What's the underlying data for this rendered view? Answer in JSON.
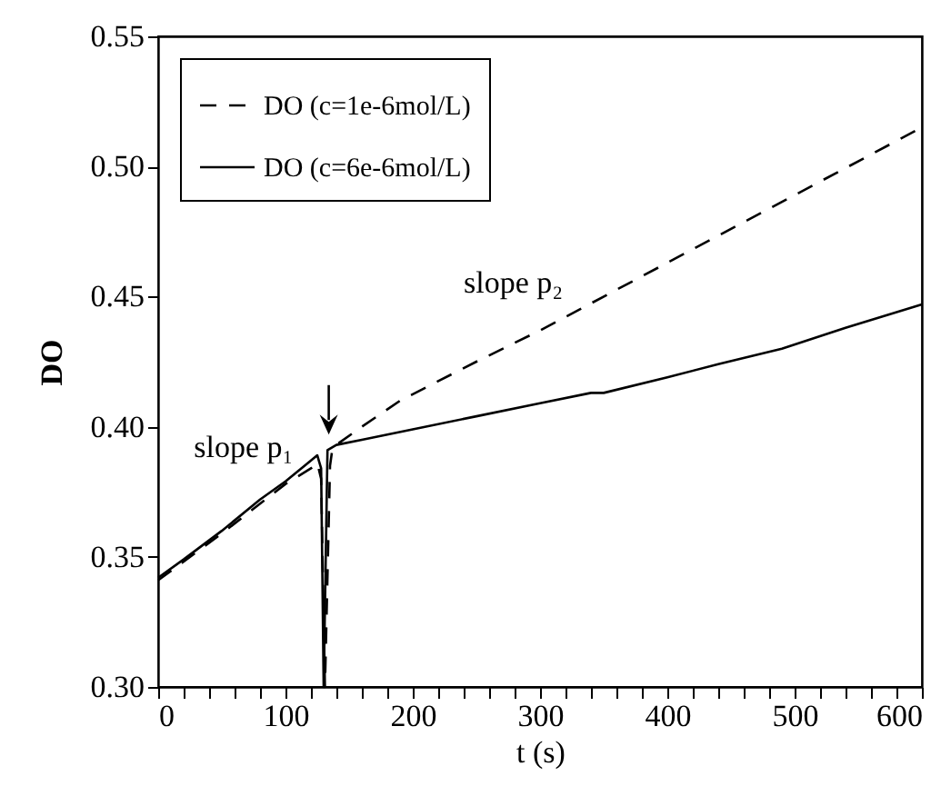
{
  "chart_data": {
    "type": "line",
    "xlabel": "t (s)",
    "ylabel": "DO",
    "annotations": [
      "slope p₁",
      "slope p₂"
    ],
    "legend": "top left",
    "xlim": [
      0,
      600
    ],
    "ylim": [
      0.3,
      0.55
    ],
    "xticks": [
      0,
      {
        "value": 20,
        "label": null
      },
      {
        "value": 40,
        "label": null
      },
      {
        "value": 60,
        "label": null
      },
      {
        "value": 80,
        "label": null
      },
      100,
      {
        "value": 120,
        "label": null
      },
      {
        "value": 140,
        "label": null
      },
      {
        "value": 160,
        "label": null
      },
      {
        "value": 180,
        "label": null
      },
      200,
      {
        "value": 220,
        "label": null
      },
      {
        "value": 240,
        "label": null
      },
      {
        "value": 260,
        "label": null
      },
      {
        "value": 280,
        "label": null
      },
      300,
      {
        "value": 320,
        "label": null
      },
      {
        "value": 340,
        "label": null
      },
      {
        "value": 360,
        "label": null
      },
      {
        "value": 380,
        "label": null
      },
      400,
      {
        "value": 420,
        "label": null
      },
      {
        "value": 440,
        "label": null
      },
      {
        "value": 460,
        "label": null
      },
      {
        "value": 480,
        "label": null
      },
      500,
      {
        "value": 520,
        "label": null
      },
      {
        "value": 540,
        "label": null
      },
      {
        "value": 560,
        "label": null
      },
      {
        "value": 580,
        "label": null
      },
      600
    ],
    "yticks": [
      {
        "value": 0.3,
        "label": "0.30"
      },
      {
        "value": 0.35,
        "label": "0.35"
      },
      {
        "value": 0.4,
        "label": "0.40"
      },
      {
        "value": 0.45,
        "label": "0.45"
      },
      {
        "value": 0.5,
        "label": "0.50"
      },
      {
        "value": 0.55,
        "label": "0.55"
      }
    ],
    "series": [
      {
        "name": "DO (c=1e-6mol/L)",
        "color": "#000000",
        "line_style": "dashed",
        "x": [
          0,
          50,
          100,
          120,
          125,
          128,
          131,
          135,
          137,
          160,
          190,
          250,
          300,
          400,
          500,
          600
        ],
        "values": [
          0.341,
          0.359,
          0.378,
          0.384,
          0.386,
          0.38,
          0.3,
          0.385,
          0.392,
          0.4,
          0.41,
          0.425,
          0.437,
          0.463,
          0.489,
          0.515
        ]
      },
      {
        "name": "DO (c=6e-6mol/L)",
        "color": "#000000",
        "line_style": "solid",
        "x": [
          0,
          20,
          50,
          80,
          100,
          125,
          128,
          130,
          133,
          140,
          160,
          200,
          250,
          300,
          340,
          350,
          400,
          440,
          490,
          540,
          600
        ],
        "values": [
          0.342,
          0.349,
          0.36,
          0.372,
          0.379,
          0.389,
          0.384,
          0.3,
          0.391,
          0.393,
          0.395,
          0.399,
          0.404,
          0.409,
          0.413,
          0.413,
          0.419,
          0.424,
          0.43,
          0.438,
          0.447
        ]
      }
    ]
  }
}
